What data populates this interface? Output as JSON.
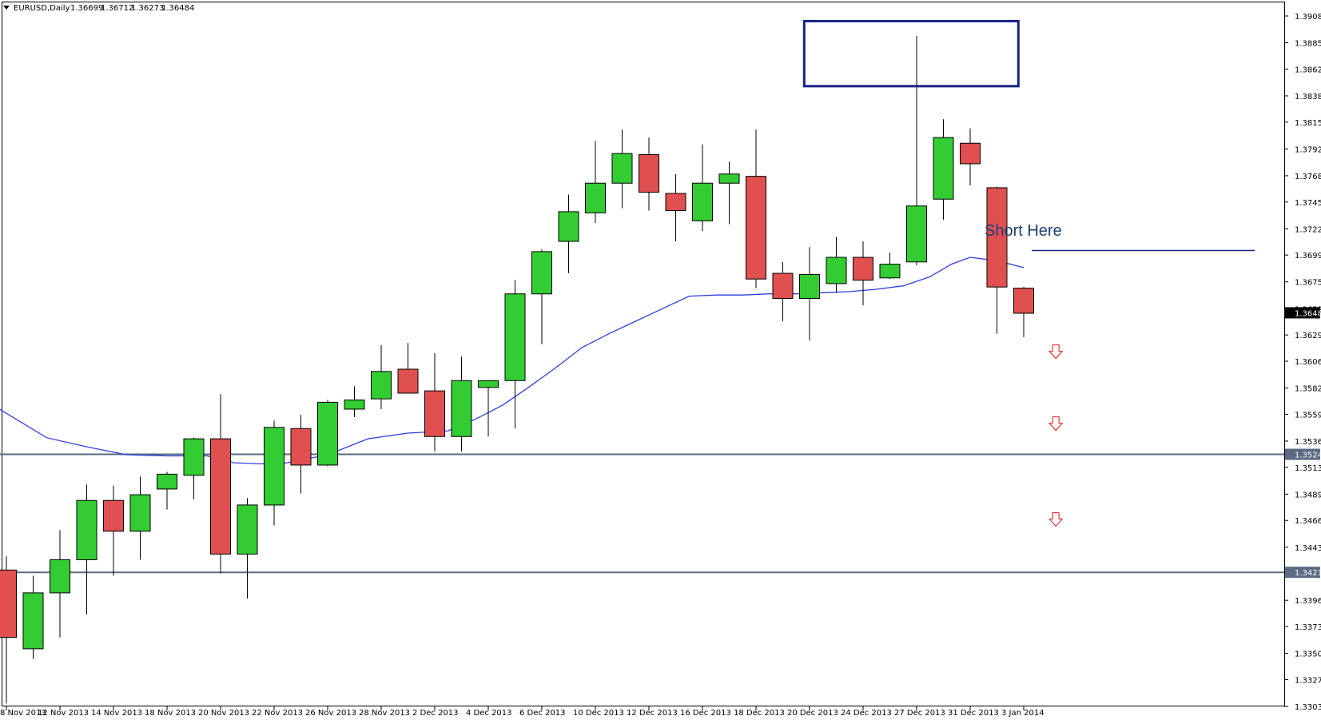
{
  "chart_data": {
    "type": "candlestick",
    "header": {
      "symbol": "EURUSD,Daily",
      "open": "1.36699",
      "high": "1.36712",
      "low": "1.36273",
      "close": "1.36484"
    },
    "x_ticks": [
      "8 Nov 2013",
      "12 Nov 2013",
      "14 Nov 2013",
      "18 Nov 2013",
      "20 Nov 2013",
      "22 Nov 2013",
      "26 Nov 2013",
      "28 Nov 2013",
      "2 Dec 2013",
      "4 Dec 2013",
      "6 Dec 2013",
      "10 Dec 2013",
      "12 Dec 2013",
      "16 Dec 2013",
      "18 Dec 2013",
      "20 Dec 2013",
      "24 Dec 2013",
      "27 Dec 2013",
      "31 Dec 2013",
      "3 Jan 2014"
    ],
    "y_ticks": [
      "1.39085",
      "1.38850",
      "1.38620",
      "1.38385",
      "1.38155",
      "1.37920",
      "1.37685",
      "1.37455",
      "1.37220",
      "1.36990",
      "1.36755",
      "1.36520",
      "1.36290",
      "1.36060",
      "1.35825",
      "1.35595",
      "1.35360",
      "1.35130",
      "1.34895",
      "1.34665",
      "1.34430",
      "1.33965",
      "1.33735",
      "1.33500",
      "1.33270",
      "1.33035"
    ],
    "ylim": [
      1.33035,
      1.39085
    ],
    "current_price": "1.36484",
    "colors": {
      "bull": "#33cc33",
      "bear": "#e05050",
      "ma": "#2f3fe0",
      "hline": "#5a6a80",
      "box": "#15238a",
      "arrow": "#ee3333",
      "text": "#1b3f73"
    },
    "candles": [
      {
        "open": 1.3423,
        "high": 1.3435,
        "low": 1.3306,
        "close": 1.3364
      },
      {
        "open": 1.3354,
        "high": 1.3418,
        "low": 1.3345,
        "close": 1.3403
      },
      {
        "open": 1.3403,
        "high": 1.3458,
        "low": 1.3364,
        "close": 1.3432
      },
      {
        "open": 1.3432,
        "high": 1.3498,
        "low": 1.3384,
        "close": 1.3484
      },
      {
        "open": 1.3484,
        "high": 1.3497,
        "low": 1.3418,
        "close": 1.3457
      },
      {
        "open": 1.3457,
        "high": 1.3505,
        "low": 1.3432,
        "close": 1.3489
      },
      {
        "open": 1.3494,
        "high": 1.3509,
        "low": 1.3476,
        "close": 1.3507
      },
      {
        "open": 1.3506,
        "high": 1.3539,
        "low": 1.3485,
        "close": 1.3538
      },
      {
        "open": 1.3538,
        "high": 1.3577,
        "low": 1.342,
        "close": 1.3437
      },
      {
        "open": 1.3437,
        "high": 1.3486,
        "low": 1.3398,
        "close": 1.348
      },
      {
        "open": 1.348,
        "high": 1.3554,
        "low": 1.3462,
        "close": 1.3548
      },
      {
        "open": 1.3547,
        "high": 1.3559,
        "low": 1.349,
        "close": 1.3515
      },
      {
        "open": 1.3515,
        "high": 1.3572,
        "low": 1.3514,
        "close": 1.357
      },
      {
        "open": 1.3564,
        "high": 1.3584,
        "low": 1.3557,
        "close": 1.3572
      },
      {
        "open": 1.3573,
        "high": 1.362,
        "low": 1.3564,
        "close": 1.3597
      },
      {
        "open": 1.3599,
        "high": 1.3622,
        "low": 1.3578,
        "close": 1.3578
      },
      {
        "open": 1.358,
        "high": 1.3613,
        "low": 1.3527,
        "close": 1.354
      },
      {
        "open": 1.354,
        "high": 1.361,
        "low": 1.3527,
        "close": 1.3589
      },
      {
        "open": 1.3583,
        "high": 1.3589,
        "low": 1.354,
        "close": 1.3589
      },
      {
        "open": 1.3589,
        "high": 1.3677,
        "low": 1.3547,
        "close": 1.3665
      },
      {
        "open": 1.3665,
        "high": 1.3704,
        "low": 1.3621,
        "close": 1.3702
      },
      {
        "open": 1.3711,
        "high": 1.3752,
        "low": 1.3683,
        "close": 1.3737
      },
      {
        "open": 1.3736,
        "high": 1.3799,
        "low": 1.3727,
        "close": 1.3762
      },
      {
        "open": 1.3762,
        "high": 1.3809,
        "low": 1.374,
        "close": 1.3788
      },
      {
        "open": 1.3787,
        "high": 1.3802,
        "low": 1.3738,
        "close": 1.3754
      },
      {
        "open": 1.3753,
        "high": 1.377,
        "low": 1.3711,
        "close": 1.3738
      },
      {
        "open": 1.3729,
        "high": 1.3796,
        "low": 1.372,
        "close": 1.3762
      },
      {
        "open": 1.3762,
        "high": 1.3781,
        "low": 1.3726,
        "close": 1.377
      },
      {
        "open": 1.3768,
        "high": 1.3809,
        "low": 1.367,
        "close": 1.3678
      },
      {
        "open": 1.3683,
        "high": 1.3693,
        "low": 1.3641,
        "close": 1.3661
      },
      {
        "open": 1.3661,
        "high": 1.3706,
        "low": 1.3624,
        "close": 1.3682
      },
      {
        "open": 1.3674,
        "high": 1.3715,
        "low": 1.3666,
        "close": 1.3697
      },
      {
        "open": 1.3697,
        "high": 1.3711,
        "low": 1.3655,
        "close": 1.3677
      },
      {
        "open": 1.3679,
        "high": 1.3701,
        "low": 1.3678,
        "close": 1.3691
      },
      {
        "open": 1.3693,
        "high": 1.3891,
        "low": 1.369,
        "close": 1.3742
      },
      {
        "open": 1.3748,
        "high": 1.3818,
        "low": 1.373,
        "close": 1.3802
      },
      {
        "open": 1.3797,
        "high": 1.381,
        "low": 1.376,
        "close": 1.3779
      },
      {
        "open": 1.3758,
        "high": 1.3759,
        "low": 1.363,
        "close": 1.3671
      },
      {
        "open": 1.367,
        "high": 1.3671,
        "low": 1.3627,
        "close": 1.3648
      }
    ],
    "moving_average": [
      {
        "i": -0.4,
        "v": 1.3566
      },
      {
        "i": 1.5,
        "v": 1.3539
      },
      {
        "i": 3,
        "v": 1.3531
      },
      {
        "i": 4.5,
        "v": 1.3524
      },
      {
        "i": 6.0,
        "v": 1.3523
      },
      {
        "i": 7.5,
        "v": 1.3523
      },
      {
        "i": 8.5,
        "v": 1.3517
      },
      {
        "i": 9.5,
        "v": 1.3516
      },
      {
        "i": 10.5,
        "v": 1.3517
      },
      {
        "i": 12.0,
        "v": 1.3524
      },
      {
        "i": 13.5,
        "v": 1.3538
      },
      {
        "i": 15.0,
        "v": 1.3543
      },
      {
        "i": 16.5,
        "v": 1.3545
      },
      {
        "i": 17.5,
        "v": 1.3555
      },
      {
        "i": 18.5,
        "v": 1.3567
      },
      {
        "i": 19.5,
        "v": 1.3583
      },
      {
        "i": 20.5,
        "v": 1.36
      },
      {
        "i": 21.5,
        "v": 1.3618
      },
      {
        "i": 22.5,
        "v": 1.363
      },
      {
        "i": 23.5,
        "v": 1.3641
      },
      {
        "i": 24.5,
        "v": 1.3652
      },
      {
        "i": 25.5,
        "v": 1.3663
      },
      {
        "i": 26.5,
        "v": 1.3664
      },
      {
        "i": 27.5,
        "v": 1.3664
      },
      {
        "i": 28.5,
        "v": 1.3665
      },
      {
        "i": 29.5,
        "v": 1.3665
      },
      {
        "i": 30.5,
        "v": 1.3666
      },
      {
        "i": 31.5,
        "v": 1.3667
      },
      {
        "i": 32.5,
        "v": 1.3669
      },
      {
        "i": 33.5,
        "v": 1.3672
      },
      {
        "i": 34.5,
        "v": 1.368
      },
      {
        "i": 35.3,
        "v": 1.3691
      },
      {
        "i": 36.0,
        "v": 1.3697
      },
      {
        "i": 37.0,
        "v": 1.3694
      },
      {
        "i": 38.0,
        "v": 1.3688
      }
    ],
    "horizontal_lines": [
      {
        "price": 1.35244,
        "label": "1.35244"
      },
      {
        "price": 1.3421,
        "label": "1.34210"
      }
    ],
    "annotations": {
      "short_label": "Short Here",
      "short_line_price": 1.3703,
      "resistance_box": {
        "price_top": 1.3904,
        "price_bottom": 1.3847,
        "i_start": 29.8,
        "i_end": 37.8
      },
      "arrows": [
        {
          "i": 39.2,
          "price": 1.3614
        },
        {
          "i": 39.2,
          "price": 1.3551
        },
        {
          "i": 39.2,
          "price": 1.3467
        }
      ]
    }
  }
}
